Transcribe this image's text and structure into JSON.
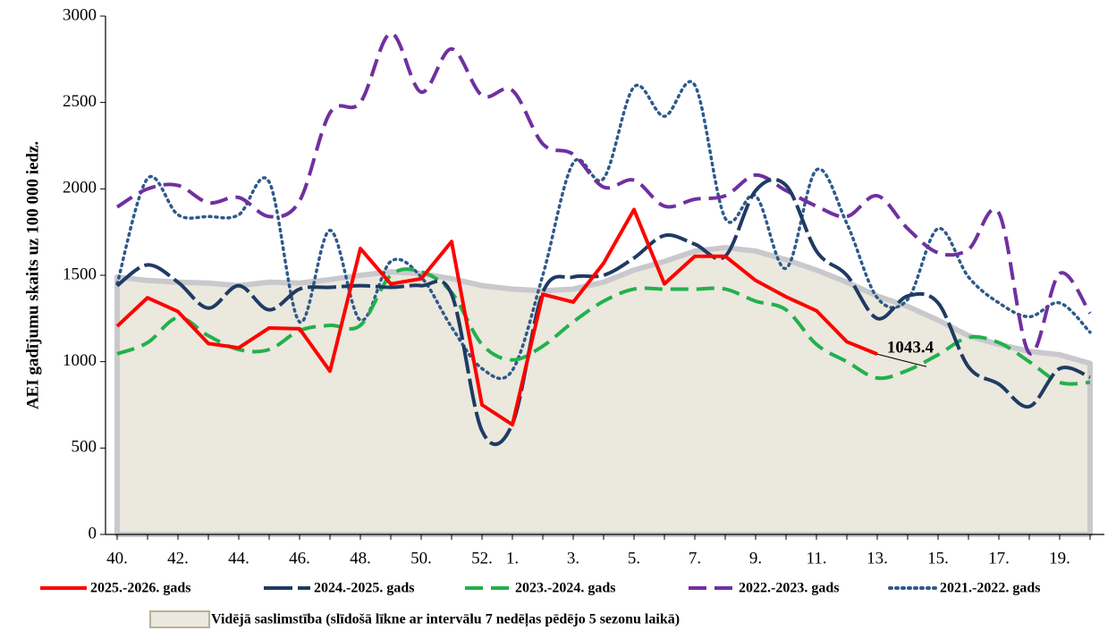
{
  "chart_data": {
    "type": "line",
    "ylabel": "AEI gadījumu skaits uz 100 000 iedz.",
    "categories": [
      "40.",
      null,
      "42.",
      null,
      "44.",
      null,
      "46.",
      null,
      "48.",
      null,
      "50.",
      null,
      "52.",
      "1.",
      null,
      "3.",
      null,
      "5.",
      null,
      "7.",
      null,
      "9.",
      null,
      "11.",
      null,
      "13.",
      null,
      "15.",
      null,
      "17.",
      null,
      "19.",
      null
    ],
    "ylim": [
      0,
      3000
    ],
    "yticks": [
      0,
      500,
      1000,
      1500,
      2000,
      2500,
      3000
    ],
    "area": {
      "name": "Vidējā saslimstība (slīdošā līkne ar intervālu 7 nedēļas pēdējo 5 sezonu laikā)",
      "color": "#ebe8de",
      "edge": "#c9c9cd",
      "values": [
        1490,
        1470,
        1460,
        1455,
        1440,
        1460,
        1455,
        1475,
        1500,
        1520,
        1510,
        1480,
        1440,
        1420,
        1410,
        1420,
        1460,
        1530,
        1580,
        1640,
        1660,
        1640,
        1590,
        1530,
        1460,
        1380,
        1320,
        1240,
        1150,
        1100,
        1060,
        1040,
        990
      ]
    },
    "series": [
      {
        "name": "2025.-2026. gads",
        "color": "#ff0000",
        "dash": "solid",
        "smooth": false,
        "values": [
          1205,
          1370,
          1290,
          1105,
          1080,
          1195,
          1190,
          945,
          1655,
          1450,
          1480,
          1695,
          750,
          635,
          1390,
          1345,
          1570,
          1880,
          1450,
          1610,
          1610,
          1470,
          1375,
          1295,
          1115,
          1043.4,
          null,
          null,
          null,
          null,
          null,
          null,
          null
        ]
      },
      {
        "name": "2024.-2025. gads",
        "color": "#1f3b63",
        "dash": "long",
        "smooth": true,
        "values": [
          1440,
          1560,
          1460,
          1310,
          1440,
          1300,
          1420,
          1430,
          1440,
          1430,
          1440,
          1390,
          600,
          640,
          1400,
          1490,
          1500,
          1600,
          1730,
          1680,
          1610,
          1990,
          2020,
          1640,
          1500,
          1250,
          1380,
          1340,
          970,
          870,
          740,
          960,
          910
        ]
      },
      {
        "name": "2023.-2024. gads",
        "color": "#22b14c",
        "dash": "dashed",
        "smooth": true,
        "values": [
          1045,
          1110,
          1255,
          1150,
          1070,
          1070,
          1180,
          1210,
          1210,
          1500,
          1520,
          1400,
          1100,
          1010,
          1090,
          1230,
          1350,
          1420,
          1420,
          1420,
          1420,
          1350,
          1300,
          1100,
          1000,
          905,
          950,
          1040,
          1140,
          1110,
          1000,
          880,
          880
        ]
      },
      {
        "name": "2022.-2023. gads",
        "color": "#7030a0",
        "dash": "dashed",
        "smooth": true,
        "values": [
          1895,
          2000,
          2020,
          1920,
          1950,
          1840,
          1930,
          2440,
          2500,
          2900,
          2560,
          2810,
          2540,
          2570,
          2260,
          2200,
          2010,
          2050,
          1900,
          1940,
          1960,
          2080,
          1990,
          1900,
          1840,
          1960,
          1770,
          1630,
          1650,
          1860,
          1050,
          1510,
          1280
        ]
      },
      {
        "name": "2021.-2022. gads",
        "color": "#2e5a8a",
        "dash": "dotted",
        "smooth": true,
        "values": [
          1450,
          2060,
          1850,
          1840,
          1850,
          2040,
          1230,
          1760,
          1240,
          1580,
          1490,
          1200,
          960,
          950,
          1500,
          2150,
          2060,
          2590,
          2420,
          2600,
          1830,
          1960,
          1540,
          2110,
          1800,
          1370,
          1360,
          1770,
          1490,
          1340,
          1260,
          1340,
          1170
        ]
      }
    ],
    "annotation": {
      "series": 0,
      "index": 25
    }
  }
}
